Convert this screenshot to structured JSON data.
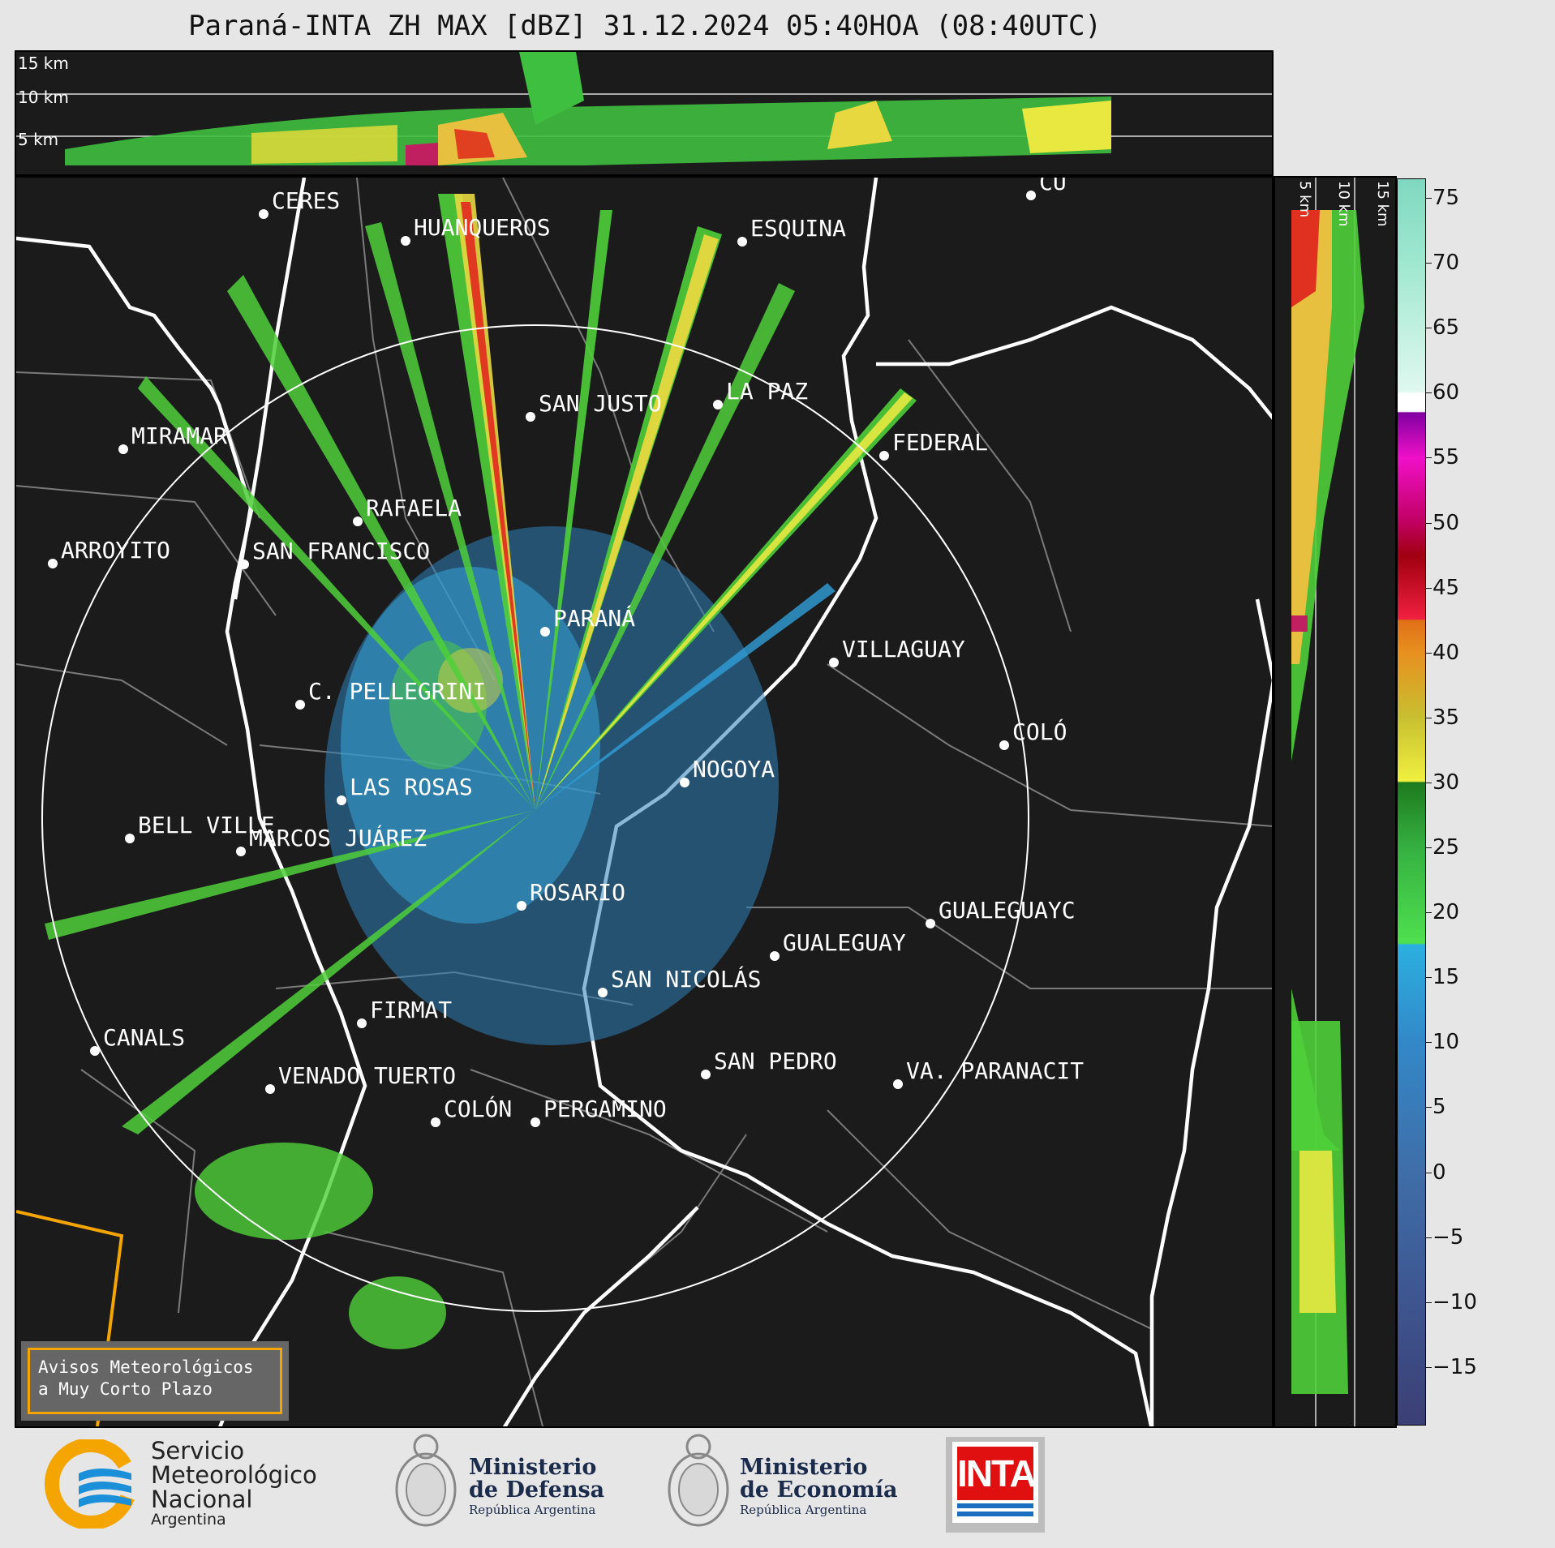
{
  "title": "Paraná-INTA ZH MAX [dBZ] 31.12.2024 05:40HOA (08:40UTC)",
  "top_panel": {
    "altitude_labels": [
      "15 km",
      "10 km",
      "5 km"
    ]
  },
  "side_panel": {
    "altitude_labels": [
      "5 km",
      "10 km",
      "15 km"
    ]
  },
  "colorbar": {
    "ticks": [
      "75",
      "70",
      "65",
      "60",
      "55",
      "50",
      "45",
      "40",
      "35",
      "30",
      "25",
      "20",
      "15",
      "10",
      "5",
      "0",
      "−5",
      "−10",
      "−15"
    ],
    "range": [
      -19.5,
      76.5
    ],
    "unit": "dBZ"
  },
  "cities": [
    {
      "name": "CERES"
    },
    {
      "name": "HUANQUEROS"
    },
    {
      "name": "ESQUINA"
    },
    {
      "name": "CU"
    },
    {
      "name": "SAN JUSTO"
    },
    {
      "name": "LA PAZ"
    },
    {
      "name": "MIRAMAR"
    },
    {
      "name": "FEDERAL"
    },
    {
      "name": "RAFAELA"
    },
    {
      "name": "ARROYITO"
    },
    {
      "name": "SAN FRANCISCO"
    },
    {
      "name": "PARANÁ"
    },
    {
      "name": "VILLAGUAY"
    },
    {
      "name": "C. PELLEGRINI"
    },
    {
      "name": "COLÓ"
    },
    {
      "name": "NOGOYA"
    },
    {
      "name": "LAS ROSAS"
    },
    {
      "name": "BELL VILLE"
    },
    {
      "name": "MARCOS JUÁREZ"
    },
    {
      "name": "ROSARIO"
    },
    {
      "name": "GUALEGUAYC"
    },
    {
      "name": "GUALEGUAY"
    },
    {
      "name": "SAN NICOLÁS"
    },
    {
      "name": "FIRMAT"
    },
    {
      "name": "CANALS"
    },
    {
      "name": "SAN PEDRO"
    },
    {
      "name": "VENADO TUERTO"
    },
    {
      "name": "VA. PARANACIT"
    },
    {
      "name": "COLÓN"
    },
    {
      "name": "PERGAMINO"
    }
  ],
  "alert": {
    "line1": "Avisos Meteorológicos",
    "line2": "a Muy Corto Plazo"
  },
  "footer": {
    "smn": {
      "line1": "Servicio",
      "line2": "Meteorológico",
      "line3": "Nacional",
      "line4": "Argentina"
    },
    "defensa": {
      "line1": "Ministerio",
      "line2": "de Defensa",
      "line3": "República Argentina"
    },
    "economia": {
      "line1": "Ministerio",
      "line2": "de Economía",
      "line3": "República Argentina"
    },
    "inta": {
      "label": "INTA"
    }
  }
}
